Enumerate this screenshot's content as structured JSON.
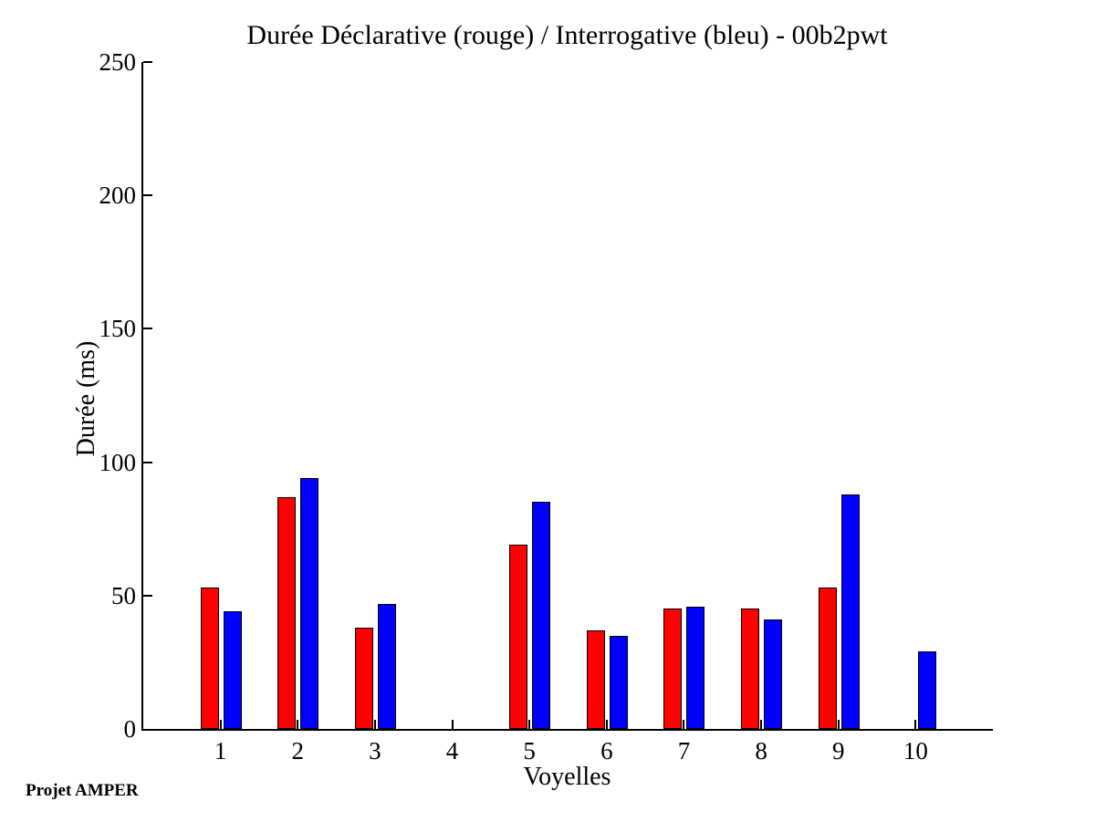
{
  "footer": {
    "project_label": "Projet AMPER"
  },
  "chart_data": {
    "type": "bar",
    "title": "Durée Déclarative (rouge) / Interrogative (bleu) - 00b2pwt",
    "xlabel": "Voyelles",
    "ylabel": "Durée (ms)",
    "categories": [
      "1",
      "2",
      "3",
      "4",
      "5",
      "6",
      "7",
      "8",
      "9",
      "10"
    ],
    "ylim": [
      0,
      250
    ],
    "yticks": [
      0,
      50,
      100,
      150,
      200,
      250
    ],
    "grid": false,
    "legend": null,
    "background_color": "#ffffff",
    "axis_color": "#000000",
    "series": [
      {
        "name": "Déclarative (rouge)",
        "slug": "declarative",
        "color": "#ff0000",
        "values": [
          53,
          87,
          38,
          0,
          69,
          37,
          45,
          45,
          53,
          0
        ]
      },
      {
        "name": "Interrogative (bleu)",
        "slug": "interrogative",
        "color": "#0000ff",
        "values": [
          44,
          94,
          47,
          0,
          85,
          35,
          46,
          41,
          88,
          29
        ]
      }
    ]
  }
}
